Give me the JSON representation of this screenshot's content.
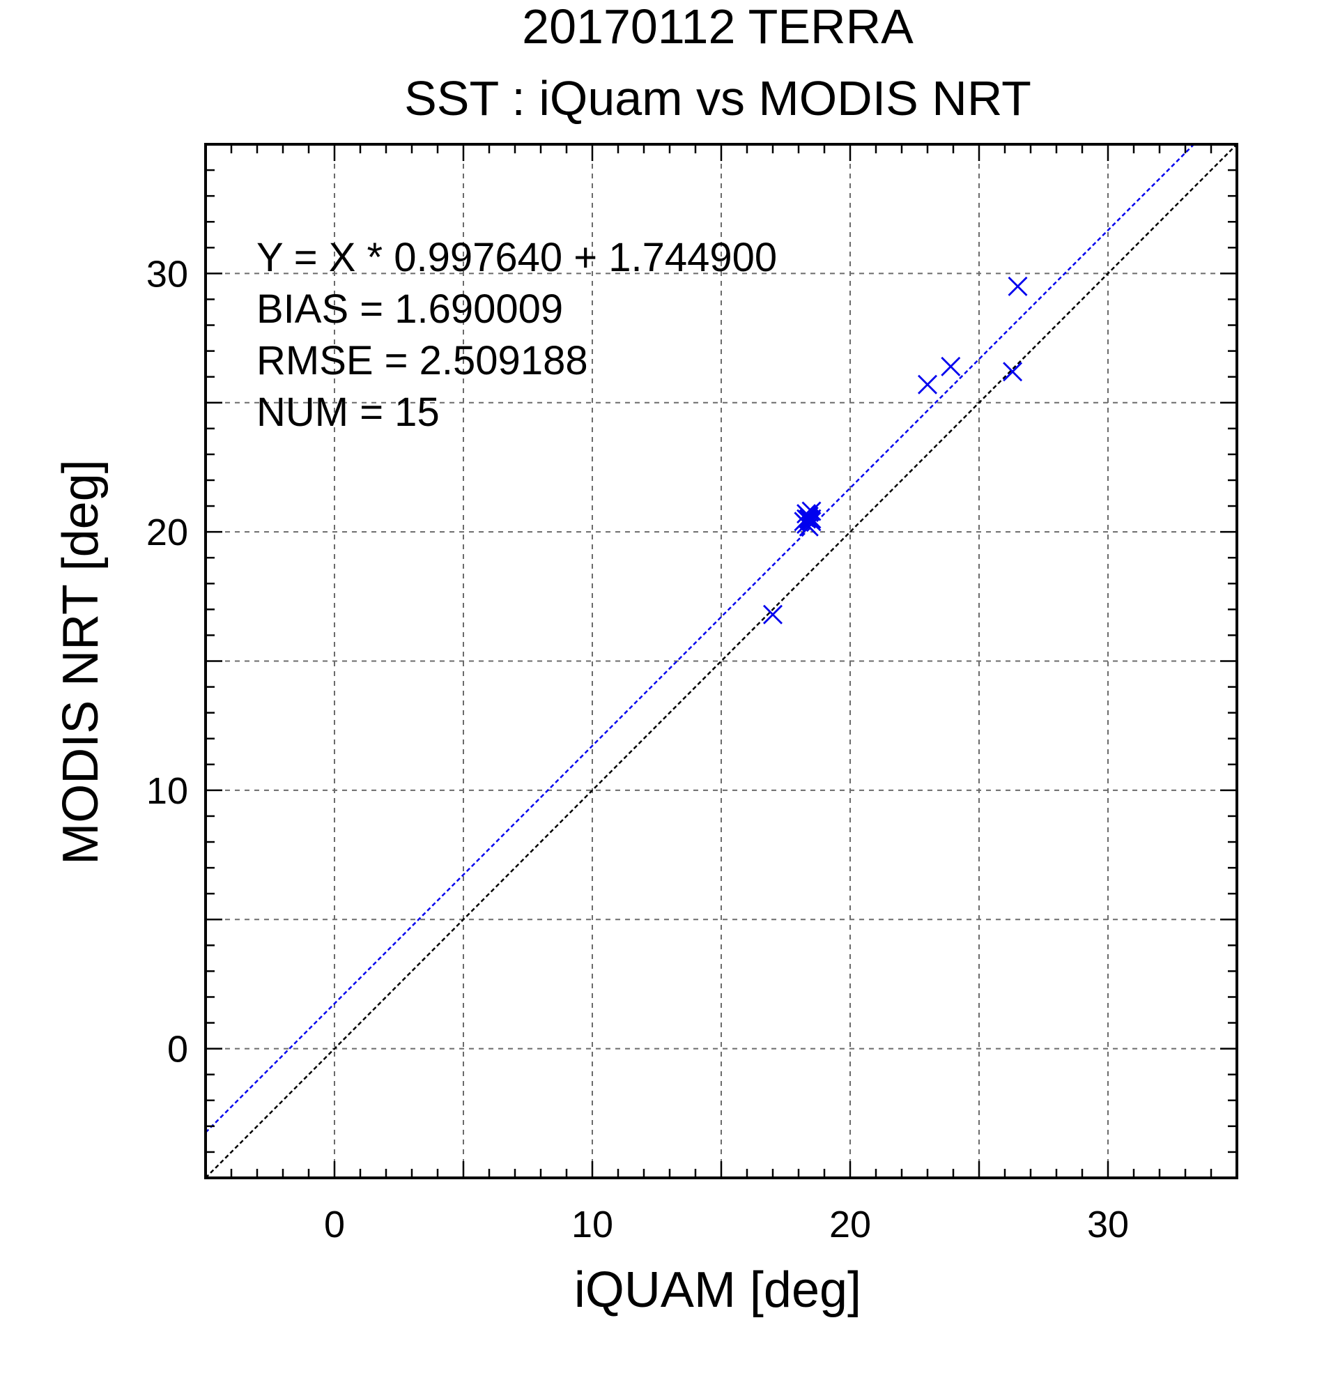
{
  "chart_data": {
    "type": "scatter",
    "title": "20170112 TERRA",
    "subtitle": "SST : iQuam vs MODIS NRT",
    "xlabel": "iQUAM [deg]",
    "ylabel": "MODIS NRT [deg]",
    "xlim": [
      -5,
      35
    ],
    "ylim": [
      -5,
      35
    ],
    "x_major_ticks": [
      0,
      10,
      20,
      30
    ],
    "y_major_ticks": [
      0,
      10,
      20,
      30
    ],
    "x_minor_step": 1,
    "y_minor_step": 1,
    "grid": true,
    "grid_step": 5,
    "stats": {
      "equation": "Y = X * 0.997640 + 1.744900",
      "bias": "BIAS = 1.690009",
      "rmse": "RMSE = 2.509188",
      "num": "NUM = 15"
    },
    "fit_line": {
      "slope": 0.99764,
      "intercept": 1.7449,
      "color": "#0000ee"
    },
    "identity_line": {
      "slope": 1,
      "intercept": 0,
      "color": "#000000"
    },
    "marker_color": "#0000ee",
    "series": [
      {
        "x": [
          17.0,
          18.2,
          18.3,
          18.4,
          18.5,
          18.3,
          18.5,
          18.4,
          18.3,
          18.5,
          23.0,
          23.9,
          26.3,
          26.5,
          18.4
        ],
        "y": [
          16.8,
          20.4,
          20.7,
          20.2,
          20.5,
          20.5,
          20.8,
          20.6,
          20.3,
          20.4,
          25.7,
          26.4,
          26.2,
          29.5,
          20.5
        ]
      }
    ]
  }
}
